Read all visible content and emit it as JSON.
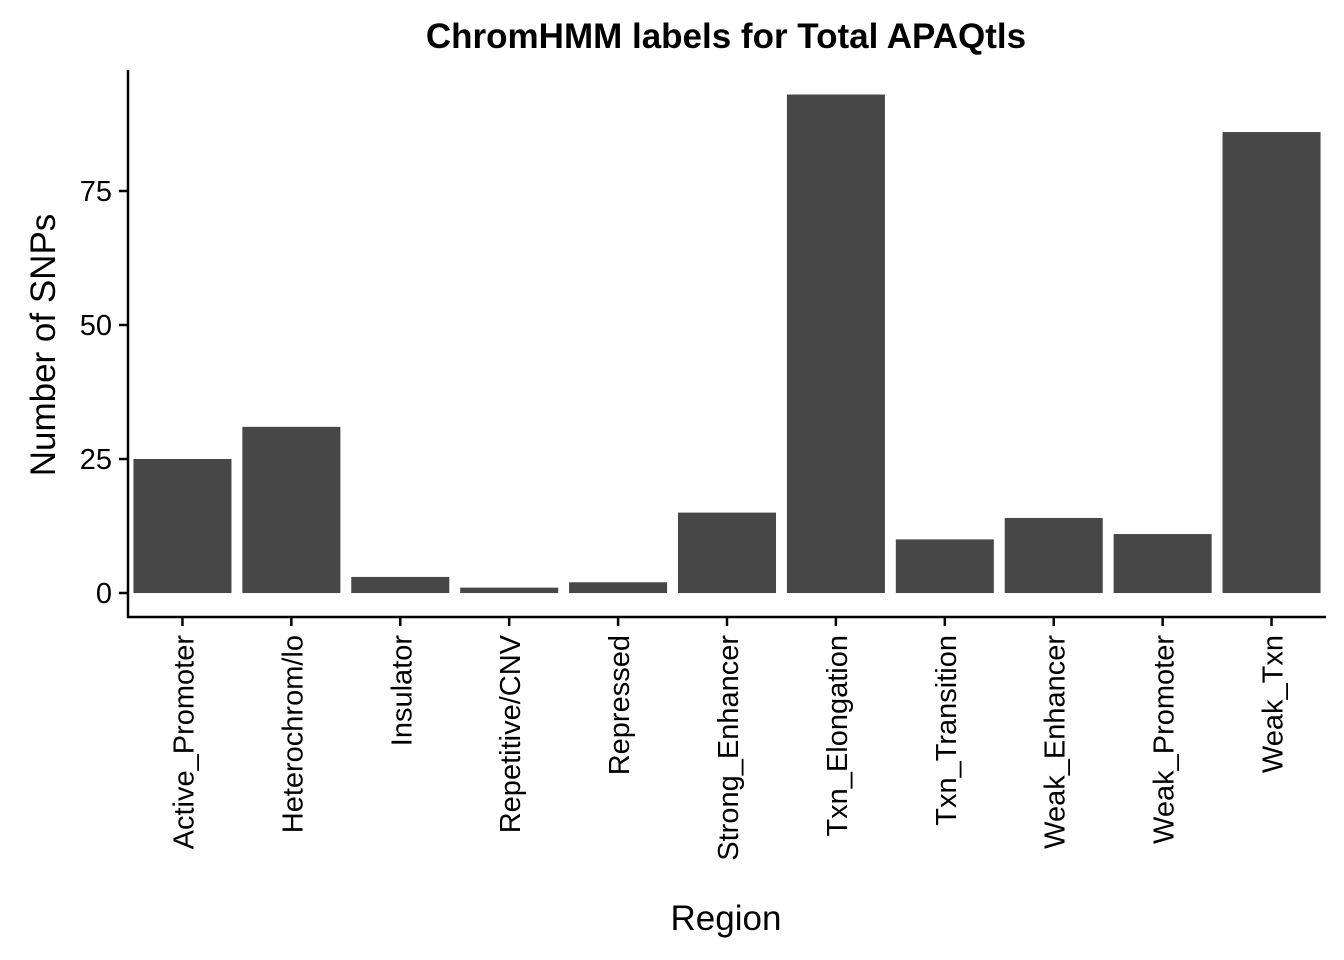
{
  "chart_data": {
    "type": "bar",
    "title": "ChromHMM labels for Total APAQtls",
    "xlabel": "Region",
    "ylabel": "Number of SNPs",
    "categories": [
      "Active_Promoter",
      "Heterochrom/lo",
      "Insulator",
      "Repetitive/CNV",
      "Repressed",
      "Strong_Enhancer",
      "Txn_Elongation",
      "Txn_Transition",
      "Weak_Enhancer",
      "Weak_Promoter",
      "Weak_Txn"
    ],
    "values": [
      25,
      31,
      3,
      1,
      2,
      15,
      93,
      10,
      14,
      11,
      86
    ],
    "ylim": [
      0,
      97
    ],
    "yticks": [
      0,
      25,
      50,
      75
    ],
    "ytick_labels": [
      "0",
      "25",
      "50",
      "75"
    ],
    "grid": false,
    "legend": "none",
    "bar_color": "#474747"
  }
}
